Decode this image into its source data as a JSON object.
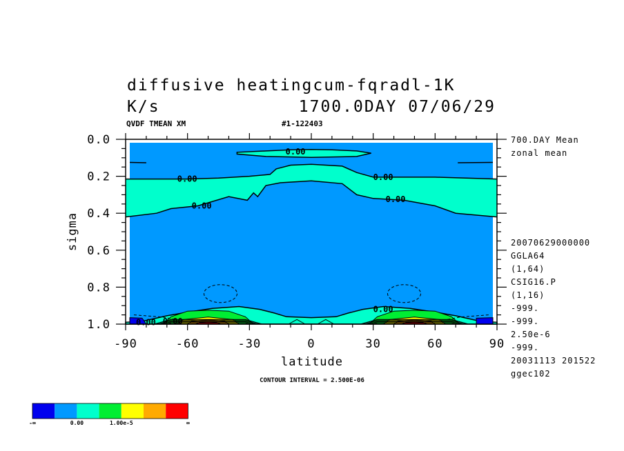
{
  "title_line1": "diffusive heatingcum-fqradl-1K",
  "title_units": "K/s",
  "title_time": "1700.0DAY 07/06/29",
  "header_left": "QVDF TMEAN XM",
  "header_right": "#1-122403",
  "contour_interval": "CONTOUR INTERVAL = 2.500E-06",
  "side_top": [
    "700.DAY Mean",
    "zonal mean"
  ],
  "side_info": [
    "20070629000000",
    "GGLA64",
    "(1,64)",
    "CSIG16.P",
    "(1,16)",
    "-999.",
    "-999.",
    "2.50e-6",
    "-999.",
    "20031113 201522",
    "ggec102"
  ],
  "legend_colors": [
    "#0000ee",
    "#0099ff",
    "#00ffcc",
    "#00ee33",
    "#ffff00",
    "#ffaa00",
    "#ff0000"
  ],
  "legend_labels": [
    "-∞",
    "0.00",
    "1.00e-5",
    "∞"
  ],
  "chart_data": {
    "type": "heatmap",
    "xlabel": "latitude",
    "ylabel": "sigma",
    "xlim": [
      -90,
      90
    ],
    "ylim": [
      0.0,
      1.0
    ],
    "y_inverted": true,
    "x_ticks": [
      "-90",
      "-60",
      "-30",
      "0",
      "30",
      "60",
      "90"
    ],
    "y_ticks": [
      "0.0",
      "0.2",
      "0.4",
      "0.6",
      "0.8",
      "1.0"
    ],
    "contour_labels": [
      "0.00",
      "0.00",
      "0.00",
      "0.00",
      "0.00",
      "0.00",
      "0.00",
      "0.00"
    ],
    "regions": {
      "background": "#0099ff",
      "positive_band": "#00ffcc",
      "near_surface_max": "#00ee33",
      "surface_extremes": [
        "#ffff00",
        "#ffaa00",
        "#ff0000"
      ],
      "polar_negative": "#0000ee"
    },
    "upper_band": [
      [
        -22,
        0.063
      ],
      [
        -10,
        0.057
      ],
      [
        0,
        0.055
      ],
      [
        10,
        0.057
      ],
      [
        22,
        0.063
      ],
      [
        29,
        0.075
      ],
      [
        22,
        0.093
      ],
      [
        0,
        0.098
      ],
      [
        -22,
        0.093
      ],
      [
        -36,
        0.08
      ],
      [
        -36,
        0.07
      ]
    ],
    "mid_band_top": [
      [
        -90,
        0.215
      ],
      [
        -60,
        0.215
      ],
      [
        -45,
        0.21
      ],
      [
        -30,
        0.2
      ],
      [
        -20,
        0.19
      ],
      [
        -17,
        0.16
      ],
      [
        -10,
        0.14
      ],
      [
        0,
        0.135
      ],
      [
        15,
        0.145
      ],
      [
        22,
        0.18
      ],
      [
        30,
        0.205
      ],
      [
        60,
        0.205
      ],
      [
        90,
        0.215
      ]
    ],
    "mid_band_bottom": [
      [
        90,
        0.42
      ],
      [
        70,
        0.4
      ],
      [
        60,
        0.36
      ],
      [
        45,
        0.33
      ],
      [
        30,
        0.32
      ],
      [
        22,
        0.3
      ],
      [
        15,
        0.24
      ],
      [
        0,
        0.225
      ],
      [
        -15,
        0.235
      ],
      [
        -22,
        0.25
      ],
      [
        -26,
        0.31
      ],
      [
        -28,
        0.29
      ],
      [
        -31,
        0.33
      ],
      [
        -40,
        0.31
      ],
      [
        -55,
        0.36
      ],
      [
        -68,
        0.375
      ],
      [
        -75,
        0.4
      ],
      [
        -90,
        0.42
      ]
    ],
    "surface_band": [
      [
        -90,
        1.0
      ],
      [
        -90,
        0.99
      ],
      [
        -82,
        0.985
      ],
      [
        -70,
        0.955
      ],
      [
        -60,
        0.935
      ],
      [
        -48,
        0.915
      ],
      [
        -35,
        0.905
      ],
      [
        -25,
        0.92
      ],
      [
        -18,
        0.94
      ],
      [
        -12,
        0.96
      ],
      [
        0,
        0.965
      ],
      [
        12,
        0.96
      ],
      [
        18,
        0.94
      ],
      [
        25,
        0.92
      ],
      [
        35,
        0.905
      ],
      [
        48,
        0.915
      ],
      [
        60,
        0.935
      ],
      [
        70,
        0.955
      ],
      [
        82,
        0.985
      ],
      [
        90,
        0.99
      ],
      [
        90,
        1.0
      ]
    ]
  }
}
